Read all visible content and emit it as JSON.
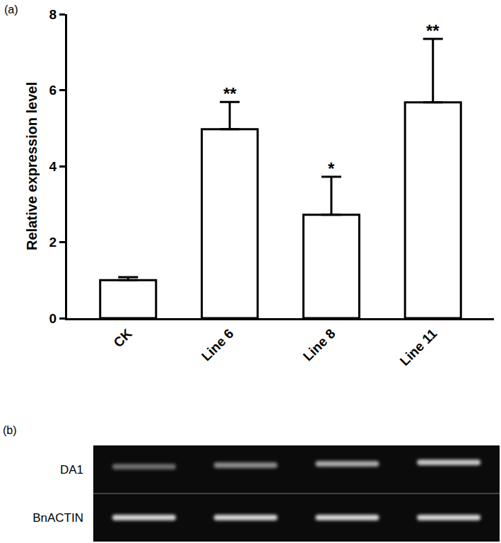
{
  "chart_data": {
    "type": "bar",
    "panel_label": "(a)",
    "categories": [
      "CK",
      "Line 6",
      "Line 8",
      "Line 11"
    ],
    "values": [
      1.0,
      4.97,
      2.72,
      5.68
    ],
    "errors": [
      0.08,
      0.72,
      1.0,
      1.67
    ],
    "significance": [
      null,
      "**",
      "*",
      "**"
    ],
    "color": "#ffffff",
    "y_label": "Relative expression level",
    "ylim": [
      0,
      8
    ],
    "yticks": [
      0,
      2,
      4,
      6,
      8
    ],
    "grid": false
  },
  "gel": {
    "panel_label": "(b)",
    "rows": [
      "DA1",
      "BnACTIN"
    ]
  }
}
